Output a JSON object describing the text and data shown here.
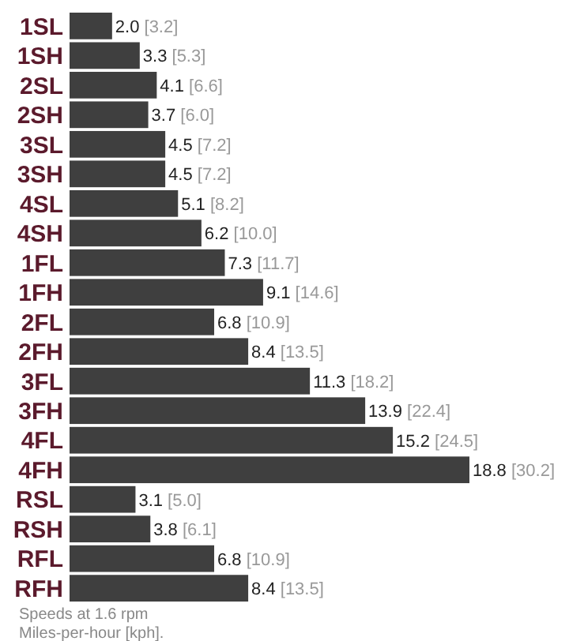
{
  "chart_data": {
    "type": "bar",
    "orientation": "horizontal",
    "color": "#3f3f3f",
    "categories": [
      "1SL",
      "1SH",
      "2SL",
      "2SH",
      "3SL",
      "3SH",
      "4SL",
      "4SH",
      "1FL",
      "1FH",
      "2FL",
      "2FH",
      "3FL",
      "3FH",
      "4FL",
      "4FH",
      "RSL",
      "RSH",
      "RFL",
      "RFH"
    ],
    "values": [
      2.0,
      3.3,
      4.1,
      3.7,
      4.5,
      4.5,
      5.1,
      6.2,
      7.3,
      9.1,
      6.8,
      8.4,
      11.3,
      13.9,
      15.2,
      18.8,
      3.1,
      3.8,
      6.8,
      8.4
    ],
    "value_labels": [
      "2.0 [3.2]",
      "3.3 [5.3]",
      "4.1 [6.6]",
      "3.7 [6.0]",
      "4.5 [7.2]",
      "4.5 [7.2]",
      "5.1 [8.2]",
      "6.2 [10.0]",
      "7.3 [11.7]",
      "9.1 [14.6]",
      "6.8 [10.9]",
      "8.4 [13.5]",
      "11.3 [18.2]",
      "13.9 [22.4]",
      "15.2 [24.5]",
      "18.8 [30.2]",
      "3.1 [5.0]",
      "3.8 [6.1]",
      "6.8 [10.9]",
      "8.4 [13.5]"
    ],
    "annotations": [
      "Speeds at 1.6 rpm",
      "Miles-per-hour [kph]."
    ]
  }
}
